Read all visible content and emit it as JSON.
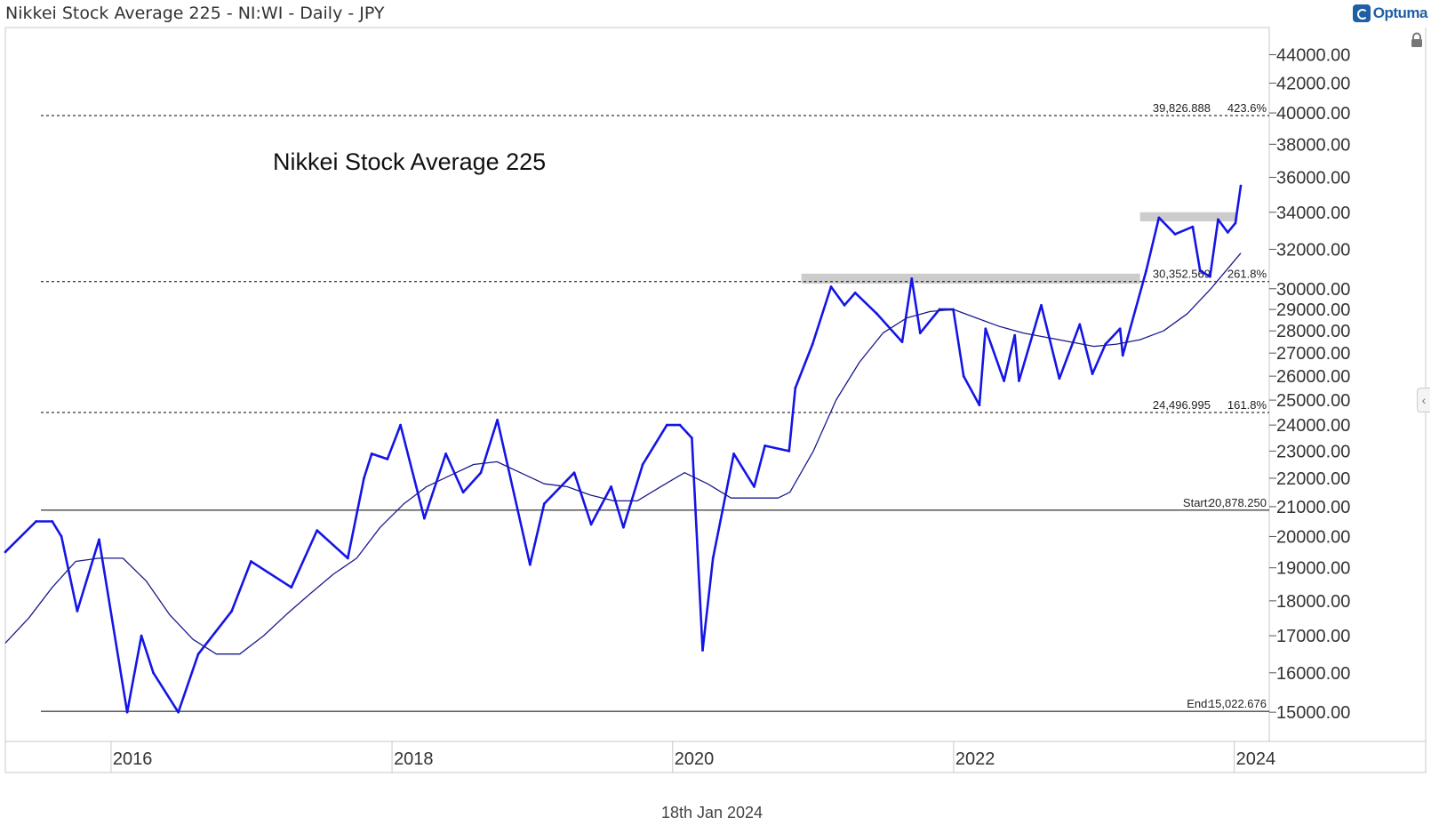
{
  "header": {
    "title": "Nikkei Stock Average 225 - NI:WI - Daily - JPY"
  },
  "brand": {
    "name": "Optuma",
    "color": "#1f5fa6"
  },
  "footer": {
    "date": "18th Jan 2024"
  },
  "icons": {
    "lock": "lock-icon",
    "side_toggle": "chevron-left-icon",
    "side_toggle_glyph": "‹"
  },
  "colors": {
    "price": "#1515e6",
    "moving_average": "#1a1a8c",
    "zone": "#cccccc",
    "level_line": "#000000"
  },
  "chart_data": {
    "type": "line",
    "title": "Nikkei Stock Average 225",
    "xlabel": "",
    "ylabel": "",
    "scale": "log",
    "x_range": [
      "2015-04-01",
      "2024-04-01"
    ],
    "ylim": [
      14300,
      46000
    ],
    "y_ticks": [
      15000,
      16000,
      17000,
      18000,
      19000,
      20000,
      21000,
      22000,
      23000,
      24000,
      25000,
      26000,
      27000,
      28000,
      29000,
      30000,
      32000,
      34000,
      36000,
      38000,
      40000,
      42000,
      44000
    ],
    "y_tick_labels": [
      "15000.00",
      "16000.00",
      "17000.00",
      "18000.00",
      "19000.00",
      "20000.00",
      "21000.00",
      "22000.00",
      "23000.00",
      "24000.00",
      "25000.00",
      "26000.00",
      "27000.00",
      "28000.00",
      "29000.00",
      "30000.00",
      "32000.00",
      "34000.00",
      "36000.00",
      "38000.00",
      "40000.00",
      "42000.00",
      "44000.00"
    ],
    "x_ticks": [
      "2016-01-01",
      "2018-01-01",
      "2020-01-01",
      "2022-01-01",
      "2024-01-01"
    ],
    "x_tick_labels": [
      "2016",
      "2018",
      "2020",
      "2022",
      "2024"
    ],
    "grid": false,
    "series": [
      {
        "key": "price",
        "x": [
          "2015-04-01",
          "2015-06-20",
          "2015-08-01",
          "2015-08-25",
          "2015-10-05",
          "2015-12-01",
          "2016-02-12",
          "2016-03-20",
          "2016-04-20",
          "2016-06-24",
          "2016-08-15",
          "2016-11-10",
          "2016-12-30",
          "2017-04-14",
          "2017-06-20",
          "2017-09-08",
          "2017-10-20",
          "2017-11-09",
          "2017-12-20",
          "2018-01-23",
          "2018-03-26",
          "2018-05-21",
          "2018-07-05",
          "2018-08-20",
          "2018-10-02",
          "2018-12-26",
          "2019-02-01",
          "2019-04-20",
          "2019-06-03",
          "2019-07-25",
          "2019-08-26",
          "2019-10-15",
          "2019-12-17",
          "2020-01-20",
          "2020-02-20",
          "2020-03-19",
          "2020-04-15",
          "2020-06-08",
          "2020-07-31",
          "2020-08-28",
          "2020-10-30",
          "2020-11-15",
          "2020-12-30",
          "2021-02-16",
          "2021-03-23",
          "2021-04-20",
          "2021-06-15",
          "2021-08-20",
          "2021-09-14",
          "2021-10-06",
          "2021-11-25",
          "2021-12-31",
          "2022-01-27",
          "2022-03-09",
          "2022-03-25",
          "2022-05-12",
          "2022-06-09",
          "2022-06-20",
          "2022-08-17",
          "2022-10-03",
          "2022-11-25",
          "2022-12-28",
          "2023-01-31",
          "2023-03-10",
          "2023-03-17",
          "2023-05-17",
          "2023-06-19",
          "2023-07-31",
          "2023-09-15",
          "2023-10-04",
          "2023-10-30",
          "2023-11-20",
          "2023-12-15",
          "2024-01-04",
          "2024-01-18"
        ],
        "values": [
          19500,
          20500,
          20500,
          20000,
          17700,
          19900,
          15000,
          17000,
          16000,
          15000,
          16500,
          17700,
          19200,
          18400,
          20200,
          19300,
          22000,
          22900,
          22700,
          24000,
          20600,
          22900,
          21500,
          22200,
          24200,
          19100,
          21100,
          22200,
          20400,
          21700,
          20300,
          22500,
          24000,
          24000,
          23500,
          16600,
          19300,
          22900,
          21700,
          23200,
          23000,
          25500,
          27400,
          30100,
          29200,
          29800,
          28800,
          27500,
          30500,
          27900,
          29000,
          29000,
          26000,
          24800,
          28100,
          25800,
          27800,
          25800,
          29200,
          25900,
          28300,
          26100,
          27400,
          28100,
          26900,
          30900,
          33700,
          32800,
          33200,
          30900,
          30600,
          33600,
          32900,
          33400,
          35500
        ]
      },
      {
        "key": "ma",
        "x": [
          "2015-04-01",
          "2015-06-01",
          "2015-08-01",
          "2015-10-01",
          "2015-12-01",
          "2016-02-01",
          "2016-04-01",
          "2016-06-01",
          "2016-08-01",
          "2016-10-01",
          "2016-12-01",
          "2017-02-01",
          "2017-04-01",
          "2017-06-01",
          "2017-08-01",
          "2017-10-01",
          "2017-12-01",
          "2018-02-01",
          "2018-04-01",
          "2018-06-01",
          "2018-08-01",
          "2018-10-01",
          "2018-12-01",
          "2019-02-01",
          "2019-04-01",
          "2019-06-01",
          "2019-08-01",
          "2019-10-01",
          "2019-12-01",
          "2020-02-01",
          "2020-04-01",
          "2020-06-01",
          "2020-08-01",
          "2020-10-01",
          "2020-11-01",
          "2021-01-01",
          "2021-03-01",
          "2021-05-01",
          "2021-07-01",
          "2021-09-01",
          "2021-11-01",
          "2022-01-01",
          "2022-03-01",
          "2022-05-01",
          "2022-07-01",
          "2022-09-01",
          "2022-11-01",
          "2023-01-01",
          "2023-03-01",
          "2023-05-01",
          "2023-07-01",
          "2023-09-01",
          "2023-11-01",
          "2024-01-18"
        ],
        "values": [
          16800,
          17500,
          18400,
          19200,
          19300,
          19300,
          18600,
          17600,
          16900,
          16500,
          16500,
          17000,
          17600,
          18200,
          18800,
          19300,
          20300,
          21100,
          21700,
          22100,
          22500,
          22600,
          22200,
          21800,
          21700,
          21400,
          21200,
          21200,
          21700,
          22200,
          21800,
          21300,
          21300,
          21300,
          21500,
          23000,
          25000,
          26600,
          27900,
          28600,
          28900,
          29000,
          28600,
          28200,
          27900,
          27700,
          27500,
          27300,
          27400,
          27600,
          28000,
          28800,
          30000,
          31800
        ]
      }
    ],
    "levels": [
      {
        "value": 39826.888,
        "label": "39,826.888",
        "pct": "423.6%",
        "style": "dotted"
      },
      {
        "value": 30352.569,
        "label": "30,352.569",
        "pct": "261.8%",
        "style": "dotted"
      },
      {
        "value": 24496.995,
        "label": "24,496.995",
        "pct": "161.8%",
        "style": "dotted"
      },
      {
        "value": 20878.25,
        "label": "Start:",
        "pct": "20,878.250",
        "style": "solid"
      },
      {
        "value": 15022.676,
        "label": "End:",
        "pct": "15,022.676",
        "style": "solid"
      }
    ],
    "zones": [
      {
        "x_start": "2020-12-01",
        "x_end": "2023-05-01",
        "low": 30250,
        "high": 30750
      },
      {
        "x_start": "2023-05-01",
        "x_end": "2024-01-10",
        "low": 33500,
        "high": 34000
      }
    ],
    "legend": "none"
  }
}
